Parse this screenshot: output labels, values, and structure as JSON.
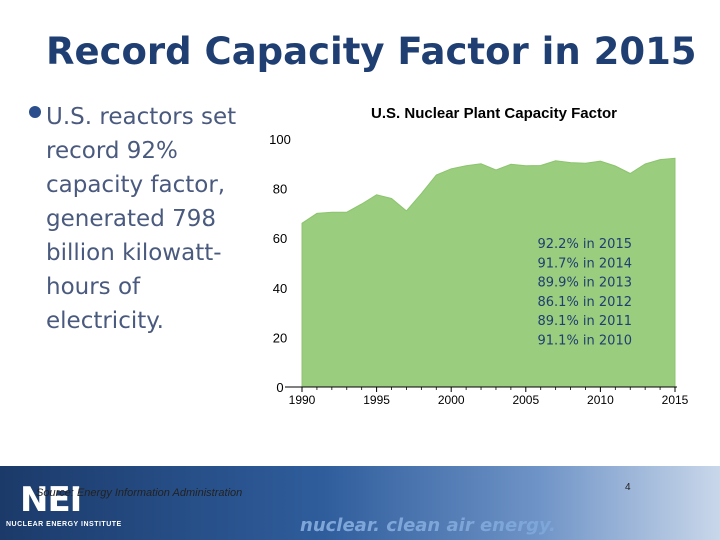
{
  "slide": {
    "title": "Record Capacity Factor in 2015",
    "bullet": "U.S. reactors set record 92% capacity factor, generated 798 billion kilowatt-hours of electricity.",
    "source": "Source: Energy Information Administration",
    "page_number": "4",
    "footer_tagline": "nuclear. clean air energy.",
    "logo_text": "NEI",
    "logo_subtext": "NUCLEAR ENERGY INSTITUTE"
  },
  "colors": {
    "title": "#1f3e72",
    "area_fill": "#9acd7e",
    "annotation_text": "#1f3e72"
  },
  "chart_data": {
    "type": "area",
    "title": "U.S. Nuclear Plant Capacity Factor",
    "xlabel": "",
    "ylabel": "",
    "x": [
      1990,
      1991,
      1992,
      1993,
      1994,
      1995,
      1996,
      1997,
      1998,
      1999,
      2000,
      2001,
      2002,
      2003,
      2004,
      2005,
      2006,
      2007,
      2008,
      2009,
      2010,
      2011,
      2012,
      2013,
      2014,
      2015
    ],
    "series": [
      {
        "values": [
          66,
          70,
          70.5,
          70.5,
          73.8,
          77.5,
          76,
          71,
          78,
          85.5,
          88,
          89.2,
          90,
          87.5,
          89.8,
          89.2,
          89.3,
          91.2,
          90.5,
          90.2,
          91.1,
          89.1,
          86.1,
          89.9,
          91.7,
          92.2
        ]
      }
    ],
    "xlim": [
      1990,
      2015
    ],
    "ylim": [
      0,
      100
    ],
    "x_ticks": [
      1990,
      1995,
      2000,
      2005,
      2010,
      2015
    ],
    "y_ticks": [
      0,
      20,
      40,
      60,
      80,
      100
    ],
    "grid": false,
    "legend": "none",
    "annotations": [
      "92.2% in 2015",
      "91.7% in 2014",
      "89.9% in 2013",
      "86.1% in 2012",
      "89.1% in 2011",
      "91.1% in 2010"
    ]
  }
}
